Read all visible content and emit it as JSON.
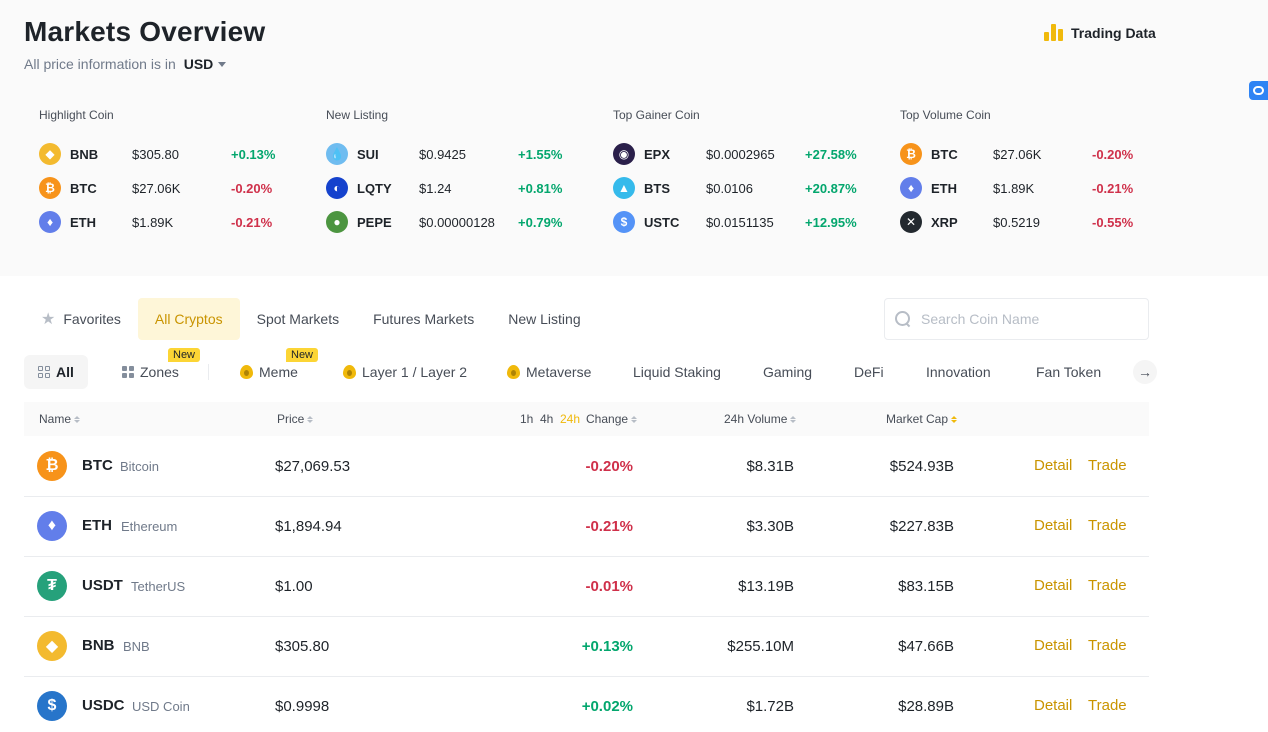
{
  "header": {
    "title": "Markets Overview",
    "subtitle": "All price information is in",
    "currency": "USD",
    "trading_data_label": "Trading Data"
  },
  "highlights": [
    {
      "heading": "Highlight Coin",
      "rows": [
        {
          "symbol": "BNB",
          "price": "$305.80",
          "change": "+0.13%",
          "trend": "up",
          "icon": "bnb-icon",
          "color": "#f3ba2f"
        },
        {
          "symbol": "BTC",
          "price": "$27.06K",
          "change": "-0.20%",
          "trend": "down",
          "icon": "btc-icon",
          "color": "#f7931a"
        },
        {
          "symbol": "ETH",
          "price": "$1.89K",
          "change": "-0.21%",
          "trend": "down",
          "icon": "eth-icon",
          "color": "#627eea"
        }
      ]
    },
    {
      "heading": "New Listing",
      "rows": [
        {
          "symbol": "SUI",
          "price": "$0.9425",
          "change": "+1.55%",
          "trend": "up",
          "icon": "sui-icon",
          "color": "#6fbcf0"
        },
        {
          "symbol": "LQTY",
          "price": "$1.24",
          "change": "+0.81%",
          "trend": "up",
          "icon": "lqty-icon",
          "color": "#1542cd"
        },
        {
          "symbol": "PEPE",
          "price": "$0.00000128",
          "change": "+0.79%",
          "trend": "up",
          "icon": "pepe-icon",
          "color": "#4c9540"
        }
      ]
    },
    {
      "heading": "Top Gainer Coin",
      "rows": [
        {
          "symbol": "EPX",
          "price": "$0.0002965",
          "change": "+27.58%",
          "trend": "up",
          "icon": "epx-icon",
          "color": "#2a1f4a"
        },
        {
          "symbol": "BTS",
          "price": "$0.0106",
          "change": "+20.87%",
          "trend": "up",
          "icon": "bts-icon",
          "color": "#35baeb"
        },
        {
          "symbol": "USTC",
          "price": "$0.0151135",
          "change": "+12.95%",
          "trend": "up",
          "icon": "ustc-icon",
          "color": "#5493f7"
        }
      ]
    },
    {
      "heading": "Top Volume Coin",
      "rows": [
        {
          "symbol": "BTC",
          "price": "$27.06K",
          "change": "-0.20%",
          "trend": "down",
          "icon": "btc-icon",
          "color": "#f7931a"
        },
        {
          "symbol": "ETH",
          "price": "$1.89K",
          "change": "-0.21%",
          "trend": "down",
          "icon": "eth-icon",
          "color": "#627eea"
        },
        {
          "symbol": "XRP",
          "price": "$0.5219",
          "change": "-0.55%",
          "trend": "down",
          "icon": "xrp-icon",
          "color": "#23292f"
        }
      ]
    }
  ],
  "tabs": {
    "favorites": "Favorites",
    "all_cryptos": "All Cryptos",
    "spot_markets": "Spot Markets",
    "futures_markets": "Futures Markets",
    "new_listing": "New Listing"
  },
  "search": {
    "placeholder": "Search Coin Name",
    "value": ""
  },
  "categories": {
    "all": "All",
    "zones": "Zones",
    "meme": "Meme",
    "layer": "Layer 1 / Layer 2",
    "metaverse": "Metaverse",
    "liquid_staking": "Liquid Staking",
    "gaming": "Gaming",
    "defi": "DeFi",
    "innovation": "Innovation",
    "fan_token": "Fan Token",
    "new_badge": "New"
  },
  "table": {
    "headers": {
      "name": "Name",
      "price": "Price",
      "tf_1h": "1h",
      "tf_4h": "4h",
      "tf_24h": "24h",
      "change": "Change",
      "volume": "24h Volume",
      "market_cap": "Market Cap"
    },
    "detail_label": "Detail",
    "trade_label": "Trade",
    "rows": [
      {
        "symbol": "BTC",
        "name": "Bitcoin",
        "price": "$27,069.53",
        "change": "-0.20%",
        "trend": "down",
        "volume": "$8.31B",
        "market_cap": "$524.93B",
        "icon": "btc-icon",
        "color": "#f7931a"
      },
      {
        "symbol": "ETH",
        "name": "Ethereum",
        "price": "$1,894.94",
        "change": "-0.21%",
        "trend": "down",
        "volume": "$3.30B",
        "market_cap": "$227.83B",
        "icon": "eth-icon",
        "color": "#627eea"
      },
      {
        "symbol": "USDT",
        "name": "TetherUS",
        "price": "$1.00",
        "change": "-0.01%",
        "trend": "down",
        "volume": "$13.19B",
        "market_cap": "$83.15B",
        "icon": "usdt-icon",
        "color": "#26a17b"
      },
      {
        "symbol": "BNB",
        "name": "BNB",
        "price": "$305.80",
        "change": "+0.13%",
        "trend": "up",
        "volume": "$255.10M",
        "market_cap": "$47.66B",
        "icon": "bnb-icon",
        "color": "#f3ba2f"
      },
      {
        "symbol": "USDC",
        "name": "USD Coin",
        "price": "$0.9998",
        "change": "+0.02%",
        "trend": "up",
        "volume": "$1.72B",
        "market_cap": "$28.89B",
        "icon": "usdc-icon",
        "color": "#2775ca"
      }
    ]
  }
}
